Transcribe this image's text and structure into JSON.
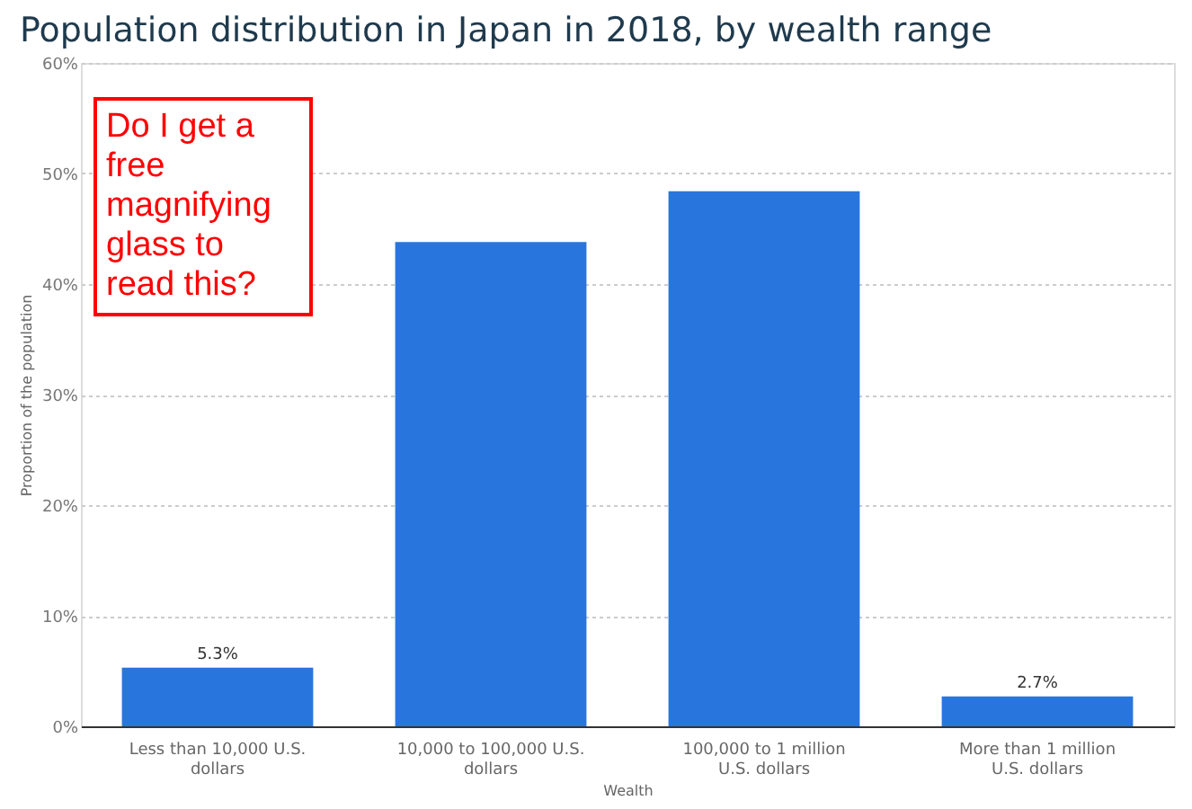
{
  "chart_data": {
    "type": "bar",
    "title": "Population distribution in Japan in 2018, by wealth range",
    "xlabel": "Wealth",
    "ylabel": "Proportion of the population",
    "categories": [
      "Less than 10,000 U.S. dollars",
      "10,000 to 100,000 U.S. dollars",
      "100,000 to 1 million U.S. dollars",
      "More than 1 million U.S. dollars"
    ],
    "values": [
      5.3,
      43.8,
      48.4,
      2.7
    ],
    "value_labels": [
      "5.3%",
      null,
      null,
      "2.7%"
    ],
    "color": "#2876dd",
    "ylim": [
      0,
      60
    ],
    "yticks": [
      {
        "value": 0,
        "label": "0%"
      },
      {
        "value": 10,
        "label": "10%"
      },
      {
        "value": 20,
        "label": "20%"
      },
      {
        "value": 30,
        "label": "30%"
      },
      {
        "value": 40,
        "label": "40%"
      },
      {
        "value": 50,
        "label": "50%"
      },
      {
        "value": 60,
        "label": "60%"
      }
    ],
    "grid": "y",
    "annotations": [
      "Do I get a free magnifying glass to read this?"
    ]
  }
}
